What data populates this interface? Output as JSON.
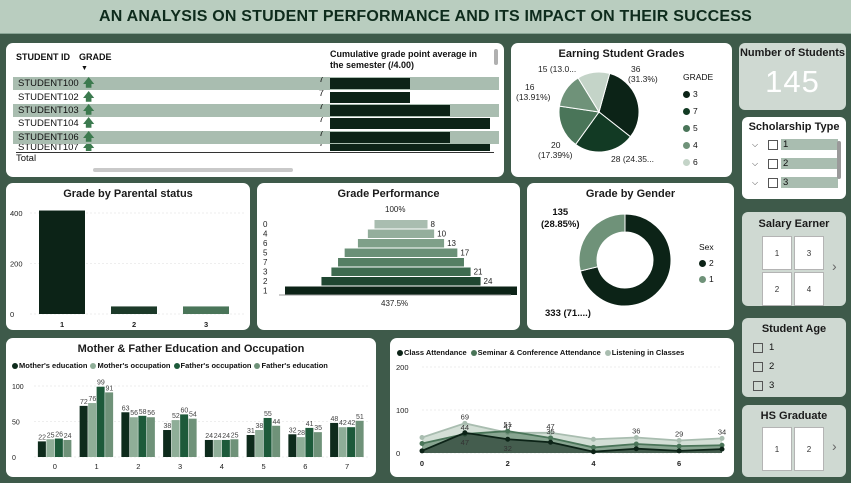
{
  "header": {
    "title": "AN ANALYSIS ON STUDENT PERFORMANCE AND ITS IMPACT ON THEIR SUCCESS"
  },
  "table": {
    "col_id": "STUDENT ID",
    "col_grade": "GRADE",
    "col_cgpa": "Cumulative grade point average in the semester (/4.00)",
    "sort_icon": "sort-desc-icon",
    "rows": [
      {
        "id": "STUDENT100",
        "grade": "7",
        "cgpa": 3
      },
      {
        "id": "STUDENT102",
        "grade": "7",
        "cgpa": 3
      },
      {
        "id": "STUDENT103",
        "grade": "7",
        "cgpa": 4
      },
      {
        "id": "STUDENT104",
        "grade": "7",
        "cgpa": 5
      },
      {
        "id": "STUDENT106",
        "grade": "7",
        "cgpa": 4
      },
      {
        "id": "STUDENT107",
        "grade": "7",
        "cgpa": 5
      }
    ],
    "total_label": "Total"
  },
  "earning": {
    "title": "Earning Student Grades",
    "legend_title": "GRADE",
    "legend": [
      "3",
      "7",
      "5",
      "4",
      "6"
    ],
    "labels": {
      "a": "36",
      "a2": "(31.3%)",
      "b": "28 (24.35...",
      "c": "20",
      "c2": "(17.39%)",
      "d": "16",
      "d2": "(13.91%)",
      "e": "15 (13.0..."
    }
  },
  "num_students": {
    "title": "Number of Students",
    "value": "145"
  },
  "scholarship": {
    "title": "Scholarship Type",
    "items": [
      "1",
      "2",
      "3"
    ]
  },
  "parental": {
    "title": "Grade by Parental status",
    "y_ticks": [
      "400",
      "200",
      "0"
    ],
    "categories": [
      "1",
      "2",
      "3"
    ]
  },
  "performance": {
    "title": "Grade Performance",
    "top_label": "100%",
    "bottom_label": "437.5%",
    "rows": [
      {
        "label": "0",
        "value": "8"
      },
      {
        "label": "4",
        "value": "10"
      },
      {
        "label": "6",
        "value": "13"
      },
      {
        "label": "5",
        "value": "17"
      },
      {
        "label": "7",
        "value": ""
      },
      {
        "label": "3",
        "value": "21"
      },
      {
        "label": "2",
        "value": "24"
      },
      {
        "label": "1",
        "value": ""
      }
    ]
  },
  "gender": {
    "title": "Grade by Gender",
    "legend_title": "Sex",
    "legend": [
      "2",
      "1"
    ],
    "label_top": "135",
    "label_top2": "(28.85%)",
    "label_bottom": "333 (71....)"
  },
  "salary": {
    "title": "Salary Earner",
    "tiles": [
      "1",
      "3",
      "2",
      "4"
    ]
  },
  "age": {
    "title": "Student Age",
    "items": [
      "1",
      "2",
      "3"
    ]
  },
  "hs": {
    "title": "HS Graduate",
    "tiles": [
      "1",
      "2"
    ]
  },
  "education": {
    "title": "Mother & Father Education and Occupation",
    "legend": [
      "Mother's education",
      "Mother's occupation",
      "Father's occupation",
      "Father's education"
    ]
  },
  "attendance": {
    "legend": [
      "Class Attendance",
      "Seminar & Conference Attendance",
      "Listening in Classes"
    ],
    "y_ticks": [
      "200",
      "100",
      "0"
    ],
    "x_ticks": [
      "0",
      "2",
      "4",
      "6"
    ]
  },
  "colors": {
    "dark": "#0c2317",
    "mid": "#4a7559",
    "light": "#8fae98",
    "pale": "#c4d4c8",
    "bg": "#3e5a4a"
  },
  "chart_data": [
    {
      "type": "pie",
      "title": "Earning Student Grades",
      "categories": [
        "3",
        "7",
        "5",
        "4",
        "6"
      ],
      "values": [
        36,
        28,
        20,
        16,
        15
      ],
      "legend": "right"
    },
    {
      "type": "bar",
      "title": "Grade by Parental status",
      "categories": [
        "1",
        "2",
        "3"
      ],
      "values": [
        410,
        30,
        30
      ],
      "ylim": [
        0,
        420
      ]
    },
    {
      "type": "bar",
      "title": "Grade Performance",
      "categories": [
        "0",
        "4",
        "6",
        "5",
        "7",
        "3",
        "2",
        "1"
      ],
      "values": [
        8,
        10,
        13,
        17,
        19,
        21,
        24,
        35
      ]
    },
    {
      "type": "pie",
      "title": "Grade by Gender",
      "categories": [
        "2",
        "1"
      ],
      "values": [
        333,
        135
      ],
      "legend": "right"
    },
    {
      "type": "bar",
      "title": "Mother & Father Education and Occupation",
      "categories": [
        "0",
        "1",
        "2",
        "3",
        "4",
        "5",
        "6",
        "7"
      ],
      "series": [
        {
          "name": "Mother's education",
          "values": [
            22,
            72,
            63,
            38,
            24,
            31,
            32,
            48
          ]
        },
        {
          "name": "Mother's occupation",
          "values": [
            25,
            76,
            56,
            52,
            24,
            38,
            28,
            42
          ]
        },
        {
          "name": "Father's occupation",
          "values": [
            26,
            99,
            58,
            60,
            24,
            55,
            41,
            42
          ]
        },
        {
          "name": "Father's education",
          "values": [
            24,
            91,
            56,
            54,
            25,
            44,
            35,
            51
          ]
        }
      ],
      "legend": "top"
    },
    {
      "type": "area",
      "categories": [
        0,
        1,
        2,
        3,
        4,
        5,
        6,
        7
      ],
      "series": [
        {
          "name": "Class Attendance",
          "values": [
            5,
            47,
            32,
            25,
            3,
            10,
            5,
            9
          ]
        },
        {
          "name": "Seminar & Conference Attendance",
          "values": [
            22,
            44,
            51,
            35,
            13,
            21,
            16,
            18
          ]
        },
        {
          "name": "Listening in Classes",
          "values": [
            36,
            69,
            47,
            47,
            32,
            36,
            29,
            34
          ]
        }
      ],
      "ylim": [
        0,
        200
      ],
      "legend": "top"
    }
  ]
}
